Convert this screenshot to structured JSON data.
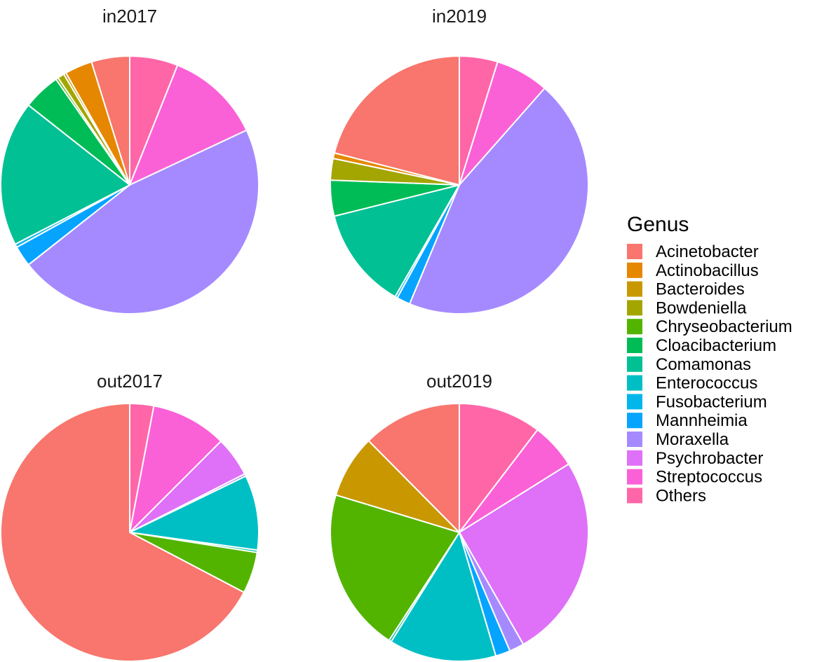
{
  "chart_data": {
    "type": "pie",
    "legend": {
      "title": "Genus",
      "placement": "right",
      "entries": [
        {
          "label": "Acinetobacter",
          "color": "#F8766D"
        },
        {
          "label": "Actinobacillus",
          "color": "#E58700"
        },
        {
          "label": "Bacteroides",
          "color": "#C99800"
        },
        {
          "label": "Bowdeniella",
          "color": "#A3A500"
        },
        {
          "label": "Chryseobacterium",
          "color": "#53B400"
        },
        {
          "label": "Cloacibacterium",
          "color": "#00BC56"
        },
        {
          "label": "Comamonas",
          "color": "#00C094"
        },
        {
          "label": "Enterococcus",
          "color": "#00BFC4"
        },
        {
          "label": "Fusobacterium",
          "color": "#00B6EB"
        },
        {
          "label": "Mannheimia",
          "color": "#06A4FF"
        },
        {
          "label": "Moraxella",
          "color": "#A58AFF"
        },
        {
          "label": "Psychrobacter",
          "color": "#DF70F8"
        },
        {
          "label": "Streptococcus",
          "color": "#FB61D7"
        },
        {
          "label": "Others",
          "color": "#FF66A8"
        }
      ]
    },
    "panels": [
      {
        "title": "in2017",
        "slices": [
          {
            "genus": "Others",
            "value": 0.058
          },
          {
            "genus": "Streptococcus",
            "value": 0.115
          },
          {
            "genus": "Moraxella",
            "value": 0.445
          },
          {
            "genus": "Mannheimia",
            "value": 0.025
          },
          {
            "genus": "Fusobacterium",
            "value": 0.004
          },
          {
            "genus": "Comamonas",
            "value": 0.175
          },
          {
            "genus": "Cloacibacterium",
            "value": 0.045
          },
          {
            "genus": "Chryseobacterium",
            "value": 0.003
          },
          {
            "genus": "Bowdeniella",
            "value": 0.008
          },
          {
            "genus": "Bacteroides",
            "value": 0.003
          },
          {
            "genus": "Actinobacillus",
            "value": 0.033
          },
          {
            "genus": "Acinetobacter",
            "value": 0.046
          }
        ]
      },
      {
        "title": "in2019",
        "slices": [
          {
            "genus": "Others",
            "value": 0.048
          },
          {
            "genus": "Streptococcus",
            "value": 0.067
          },
          {
            "genus": "Moraxella",
            "value": 0.448
          },
          {
            "genus": "Mannheimia",
            "value": 0.017
          },
          {
            "genus": "Fusobacterium",
            "value": 0.003
          },
          {
            "genus": "Comamonas",
            "value": 0.128
          },
          {
            "genus": "Cloacibacterium",
            "value": 0.045
          },
          {
            "genus": "Bowdeniella",
            "value": 0.027
          },
          {
            "genus": "Actinobacillus",
            "value": 0.007
          },
          {
            "genus": "Acinetobacter",
            "value": 0.21
          }
        ]
      },
      {
        "title": "out2017",
        "slices": [
          {
            "genus": "Others",
            "value": 0.03
          },
          {
            "genus": "Streptococcus",
            "value": 0.095
          },
          {
            "genus": "Psychrobacter",
            "value": 0.05
          },
          {
            "genus": "Moraxella",
            "value": 0.003
          },
          {
            "genus": "Enterococcus",
            "value": 0.094
          },
          {
            "genus": "Comamonas",
            "value": 0.003
          },
          {
            "genus": "Chryseobacterium",
            "value": 0.052
          },
          {
            "genus": "Acinetobacter",
            "value": 0.673
          }
        ]
      },
      {
        "title": "out2019",
        "slices": [
          {
            "genus": "Others",
            "value": 0.101
          },
          {
            "genus": "Streptococcus",
            "value": 0.056
          },
          {
            "genus": "Psychrobacter",
            "value": 0.25
          },
          {
            "genus": "Moraxella",
            "value": 0.018
          },
          {
            "genus": "Mannheimia",
            "value": 0.018
          },
          {
            "genus": "Enterococcus",
            "value": 0.131
          },
          {
            "genus": "Comamonas",
            "value": 0.003
          },
          {
            "genus": "Chryseobacterium",
            "value": 0.2
          },
          {
            "genus": "Bacteroides",
            "value": 0.077
          },
          {
            "genus": "Acinetobacter",
            "value": 0.121
          }
        ]
      }
    ]
  }
}
